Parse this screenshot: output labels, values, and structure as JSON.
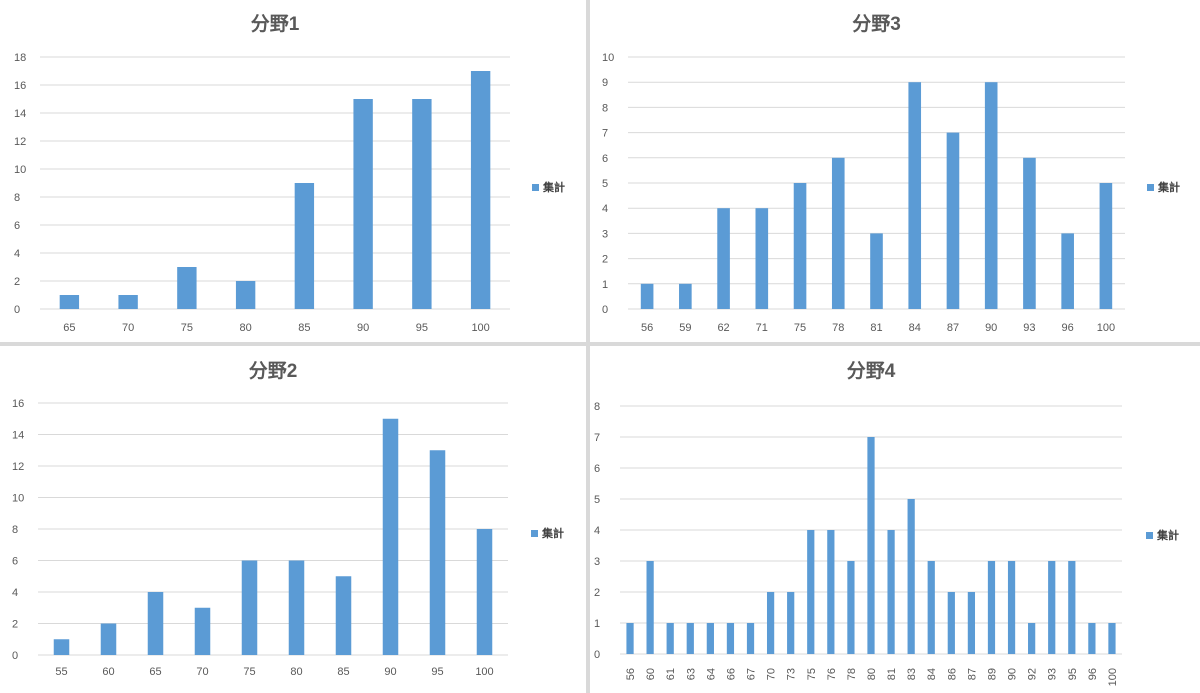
{
  "colors": {
    "bar": "#5b9bd5",
    "grid": "#d9d9d9",
    "text": "#595959"
  },
  "chart_data": [
    {
      "id": "p1",
      "type": "bar",
      "title": "分野1",
      "categories": [
        "65",
        "70",
        "75",
        "80",
        "85",
        "90",
        "95",
        "100"
      ],
      "series": [
        {
          "name": "集計",
          "values": [
            1,
            1,
            3,
            2,
            9,
            15,
            15,
            17
          ]
        }
      ],
      "ylim": [
        0,
        18
      ],
      "yticks": [
        0,
        2,
        4,
        6,
        8,
        10,
        12,
        14,
        16,
        18
      ],
      "grid": true,
      "legend": "right"
    },
    {
      "id": "p3",
      "type": "bar",
      "title": "分野3",
      "categories": [
        "56",
        "59",
        "62",
        "71",
        "75",
        "78",
        "81",
        "84",
        "87",
        "90",
        "93",
        "96",
        "100"
      ],
      "series": [
        {
          "name": "集計",
          "values": [
            1,
            1,
            4,
            4,
            5,
            6,
            3,
            9,
            7,
            9,
            6,
            3,
            5
          ]
        }
      ],
      "ylim": [
        0,
        10
      ],
      "yticks": [
        0,
        1,
        2,
        3,
        4,
        5,
        6,
        7,
        8,
        9,
        10
      ],
      "grid": true,
      "legend": "right"
    },
    {
      "id": "p2",
      "type": "bar",
      "title": "分野2",
      "categories": [
        "55",
        "60",
        "65",
        "70",
        "75",
        "80",
        "85",
        "90",
        "95",
        "100"
      ],
      "series": [
        {
          "name": "集計",
          "values": [
            1,
            2,
            4,
            3,
            6,
            6,
            5,
            15,
            13,
            8
          ]
        }
      ],
      "ylim": [
        0,
        16
      ],
      "yticks": [
        0,
        2,
        4,
        6,
        8,
        10,
        12,
        14,
        16
      ],
      "grid": true,
      "legend": "right"
    },
    {
      "id": "p4",
      "type": "bar",
      "title": "分野4",
      "categories": [
        "56",
        "60",
        "61",
        "63",
        "64",
        "66",
        "67",
        "70",
        "73",
        "75",
        "76",
        "78",
        "80",
        "81",
        "83",
        "84",
        "86",
        "87",
        "89",
        "90",
        "92",
        "93",
        "95",
        "96",
        "100"
      ],
      "series": [
        {
          "name": "集計",
          "values": [
            1,
            3,
            1,
            1,
            1,
            1,
            1,
            2,
            2,
            4,
            4,
            3,
            7,
            4,
            5,
            3,
            2,
            2,
            3,
            3,
            1,
            3,
            3,
            1,
            1
          ]
        }
      ],
      "ylim": [
        0,
        8
      ],
      "yticks": [
        0,
        1,
        2,
        3,
        4,
        5,
        6,
        7,
        8
      ],
      "grid": true,
      "legend": "right",
      "rotate_labels": true
    }
  ]
}
